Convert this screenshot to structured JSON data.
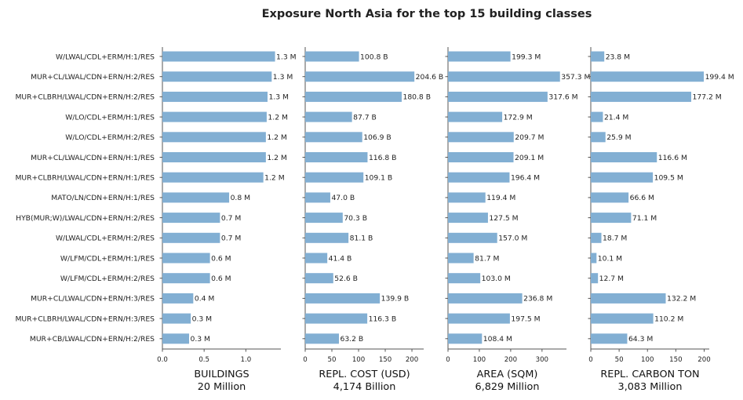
{
  "chart_data": {
    "type": "bar",
    "orientation": "horizontal",
    "title": "Exposure North Asia for the top 15 building classes",
    "categories": [
      "W/LWAL/CDL+ERM/H:1/RES",
      "MUR+CL/LWAL/CDN+ERN/H:2/RES",
      "MUR+CLBRH/LWAL/CDN+ERN/H:2/RES",
      "W/LO/CDL+ERM/H:1/RES",
      "W/LO/CDL+ERM/H:2/RES",
      "MUR+CL/LWAL/CDN+ERN/H:1/RES",
      "MUR+CLBRH/LWAL/CDN+ERN/H:1/RES",
      "MATO/LN/CDN+ERN/H:1/RES",
      "HYB(MUR;W)/LWAL/CDN+ERN/H:2/RES",
      "W/LWAL/CDL+ERM/H:2/RES",
      "W/LFM/CDL+ERM/H:1/RES",
      "W/LFM/CDL+ERM/H:2/RES",
      "MUR+CL/LWAL/CDN+ERN/H:3/RES",
      "MUR+CLBRH/LWAL/CDN+ERN/H:3/RES",
      "MUR+CB/LWAL/CDN+ERN/H:2/RES"
    ],
    "color": "#82afd3",
    "grid": false,
    "panels": [
      {
        "xlabel": "BUILDINGS",
        "total": "20 Million",
        "xlim": [
          0,
          1.42
        ],
        "ticks": [
          0,
          0.5,
          1
        ],
        "tick_labels": [
          "0.0",
          "0.5",
          "1.0"
        ],
        "values": [
          1.35,
          1.31,
          1.26,
          1.25,
          1.24,
          1.24,
          1.21,
          0.8,
          0.69,
          0.69,
          0.57,
          0.57,
          0.37,
          0.34,
          0.32
        ],
        "labels": [
          "1.3 M",
          "1.3 M",
          "1.3 M",
          "1.2 M",
          "1.2 M",
          "1.2 M",
          "1.2 M",
          "0.8 M",
          "0.7 M",
          "0.7 M",
          "0.6 M",
          "0.6 M",
          "0.4 M",
          "0.3 M",
          "0.3 M"
        ]
      },
      {
        "xlabel": "REPL. COST (USD)",
        "total": "4,174 Billion",
        "xlim": [
          0,
          222
        ],
        "ticks": [
          0,
          50,
          100,
          150,
          200
        ],
        "tick_labels": [
          "0",
          "50",
          "100",
          "150",
          "200"
        ],
        "values": [
          100.8,
          204.6,
          180.8,
          87.7,
          106.9,
          116.8,
          109.1,
          47.0,
          70.3,
          81.1,
          41.4,
          52.6,
          139.9,
          116.3,
          63.2
        ],
        "labels": [
          "100.8 B",
          "204.6 B",
          "180.8 B",
          "87.7 B",
          "106.9 B",
          "116.8 B",
          "109.1 B",
          "47.0 B",
          "70.3 B",
          "81.1 B",
          "41.4 B",
          "52.6 B",
          "139.9 B",
          "116.3 B",
          "63.2 B"
        ]
      },
      {
        "xlabel": "AREA (SQM)",
        "total": "6,829 Million",
        "xlim": [
          0,
          378
        ],
        "ticks": [
          0,
          100,
          200,
          300
        ],
        "tick_labels": [
          "0",
          "100",
          "200",
          "300"
        ],
        "values": [
          199.3,
          357.3,
          317.6,
          172.9,
          209.7,
          209.1,
          196.4,
          119.4,
          127.5,
          157.0,
          81.7,
          103.0,
          236.8,
          197.5,
          108.4
        ],
        "labels": [
          "199.3 M",
          "357.3 M",
          "317.6 M",
          "172.9 M",
          "209.7 M",
          "209.1 M",
          "196.4 M",
          "119.4 M",
          "127.5 M",
          "157.0 M",
          "81.7 M",
          "103.0 M",
          "236.8 M",
          "197.5 M",
          "108.4 M"
        ]
      },
      {
        "xlabel": "REPL. CARBON TON",
        "total": "3,083 Million",
        "xlim": [
          0,
          209
        ],
        "ticks": [
          0,
          50,
          100,
          150,
          200
        ],
        "tick_labels": [
          "0",
          "50",
          "100",
          "150",
          "200"
        ],
        "values": [
          23.8,
          199.4,
          177.2,
          21.4,
          25.9,
          116.6,
          109.5,
          66.6,
          71.1,
          18.7,
          10.1,
          12.7,
          132.2,
          110.2,
          64.3
        ],
        "labels": [
          "23.8 M",
          "199.4 M",
          "177.2 M",
          "21.4 M",
          "25.9 M",
          "116.6 M",
          "109.5 M",
          "66.6 M",
          "71.1 M",
          "18.7 M",
          "10.1 M",
          "12.7 M",
          "132.2 M",
          "110.2 M",
          "64.3 M"
        ]
      }
    ]
  }
}
